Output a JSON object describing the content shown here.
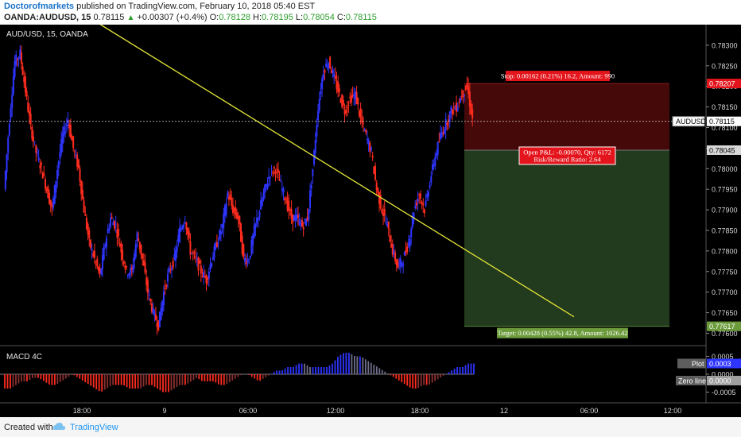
{
  "header": {
    "author": "Doctorofmarkets",
    "published": "published on TradingView.com, February 10, 2018 05:40 EST",
    "symbol": "OANDA:AUDUSD, 15",
    "price": "0.78115",
    "change": "+0.00307 (+0.4%)",
    "o_label": "O:",
    "o": "0.78128",
    "h_label": "H:",
    "h": "0.78195",
    "l_label": "L:",
    "l": "0.78054",
    "c_label": "C:",
    "c": "0.78115"
  },
  "footer": {
    "created": "Created with",
    "brand": "TradingView"
  },
  "chart_data": {
    "type": "candlestick",
    "title": "AUD/USD, 15, OANDA",
    "x_ticks": [
      "18:00",
      "9",
      "06:00",
      "12:00",
      "18:00",
      "12",
      "06:00",
      "12:00"
    ],
    "y_ticks": [
      0.783,
      0.7825,
      0.782,
      0.7815,
      0.781,
      0.7805,
      0.78,
      0.7795,
      0.779,
      0.7785,
      0.778,
      0.7775,
      0.777,
      0.7765,
      0.776
    ],
    "y_tick_labels": [
      "0.78300",
      "0.78250",
      "0.78200",
      "0.78150",
      "0.78100",
      "0.78050",
      "0.78000",
      "0.77950",
      "0.77900",
      "0.77850",
      "0.77800",
      "0.77750",
      "0.77700",
      "0.77650",
      "0.77600"
    ],
    "ylim": [
      0.7757,
      0.7835
    ],
    "price_path": [
      0.7795,
      0.7812,
      0.7826,
      0.7828,
      0.7819,
      0.781,
      0.7804,
      0.78,
      0.7795,
      0.779,
      0.78,
      0.7808,
      0.7812,
      0.7805,
      0.78,
      0.779,
      0.7782,
      0.7778,
      0.7774,
      0.7782,
      0.7788,
      0.7786,
      0.778,
      0.7775,
      0.7775,
      0.7784,
      0.7778,
      0.777,
      0.7765,
      0.7762,
      0.777,
      0.7775,
      0.7778,
      0.7785,
      0.7788,
      0.778,
      0.7778,
      0.7775,
      0.7773,
      0.7778,
      0.7782,
      0.7786,
      0.7794,
      0.779,
      0.7788,
      0.7778,
      0.7778,
      0.7785,
      0.779,
      0.7795,
      0.7799,
      0.78,
      0.7796,
      0.7792,
      0.7788,
      0.7788,
      0.7786,
      0.7788,
      0.78,
      0.7815,
      0.7824,
      0.7826,
      0.7822,
      0.7818,
      0.7814,
      0.7817,
      0.7818,
      0.7812,
      0.7808,
      0.7804,
      0.7795,
      0.779,
      0.7786,
      0.778,
      0.7776,
      0.7778,
      0.7782,
      0.779,
      0.7794,
      0.779,
      0.7797,
      0.7803,
      0.7808,
      0.7811,
      0.7814,
      0.7815,
      0.7818,
      0.782,
      0.7812
    ],
    "trendline": {
      "from": [
        0,
        0.78415
      ],
      "to": [
        1.0,
        0.7764
      ]
    },
    "current": {
      "label": "AUDUSD",
      "value": "0.78115"
    },
    "stop": {
      "price": 0.78207,
      "label": "0.78207",
      "text": "Stop: 0.00162 (0.21%) 16.2, Amount: 990"
    },
    "entry": {
      "price": 0.78045,
      "label": "0.78045",
      "text1": "Open P&L: -0.00070, Qty: 6172",
      "text2": "Risk/Reward Ratio: 2.64"
    },
    "target": {
      "price": 0.77617,
      "label": "0.77617",
      "text": "Target: 0.00428 (0.55%) 42.8, Amount: 1026.42"
    },
    "macd": {
      "title": "MACD 4C",
      "y_tick_labels": [
        "0.0005",
        "0.0000",
        "-0.0005"
      ],
      "ylim": [
        -0.0008,
        0.0008
      ],
      "plot_label": "Plot",
      "plot_value": "0.0003",
      "zero_label": "Zero line",
      "zero_value": "0.0000",
      "values": [
        -0.0004,
        -0.0004,
        -0.0003,
        -0.0002,
        -0.0002,
        -0.0001,
        -0.0001,
        -0.0002,
        -0.0003,
        -0.0003,
        -0.0002,
        -0.0001,
        0.0,
        -0.0001,
        -0.0002,
        -0.0003,
        -0.0004,
        -0.0005,
        -0.0004,
        -0.0003,
        -0.0003,
        -0.0003,
        -0.0004,
        -0.0004,
        -0.0004,
        -0.0003,
        -0.0003,
        -0.0004,
        -0.0005,
        -0.0005,
        -0.0004,
        -0.0003,
        -0.0003,
        -0.0002,
        -0.0001,
        -0.0002,
        -0.0002,
        -0.0002,
        -0.0003,
        -0.0003,
        -0.0002,
        -0.0001,
        0.0,
        0.0,
        -0.0001,
        -0.0002,
        -0.0001,
        0.0,
        0.0001,
        0.0001,
        0.0002,
        0.0002,
        0.0003,
        0.0003,
        0.0002,
        0.0002,
        0.0002,
        0.0002,
        0.0003,
        0.0005,
        0.0006,
        0.0006,
        0.0005,
        0.0005,
        0.0004,
        0.0003,
        0.0002,
        0.0001,
        0.0,
        -0.0001,
        -0.0002,
        -0.0003,
        -0.0004,
        -0.0004,
        -0.0003,
        -0.0003,
        -0.0002,
        -0.0001,
        0.0,
        0.0001,
        0.0002,
        0.0002,
        0.0003,
        0.0003
      ]
    }
  }
}
